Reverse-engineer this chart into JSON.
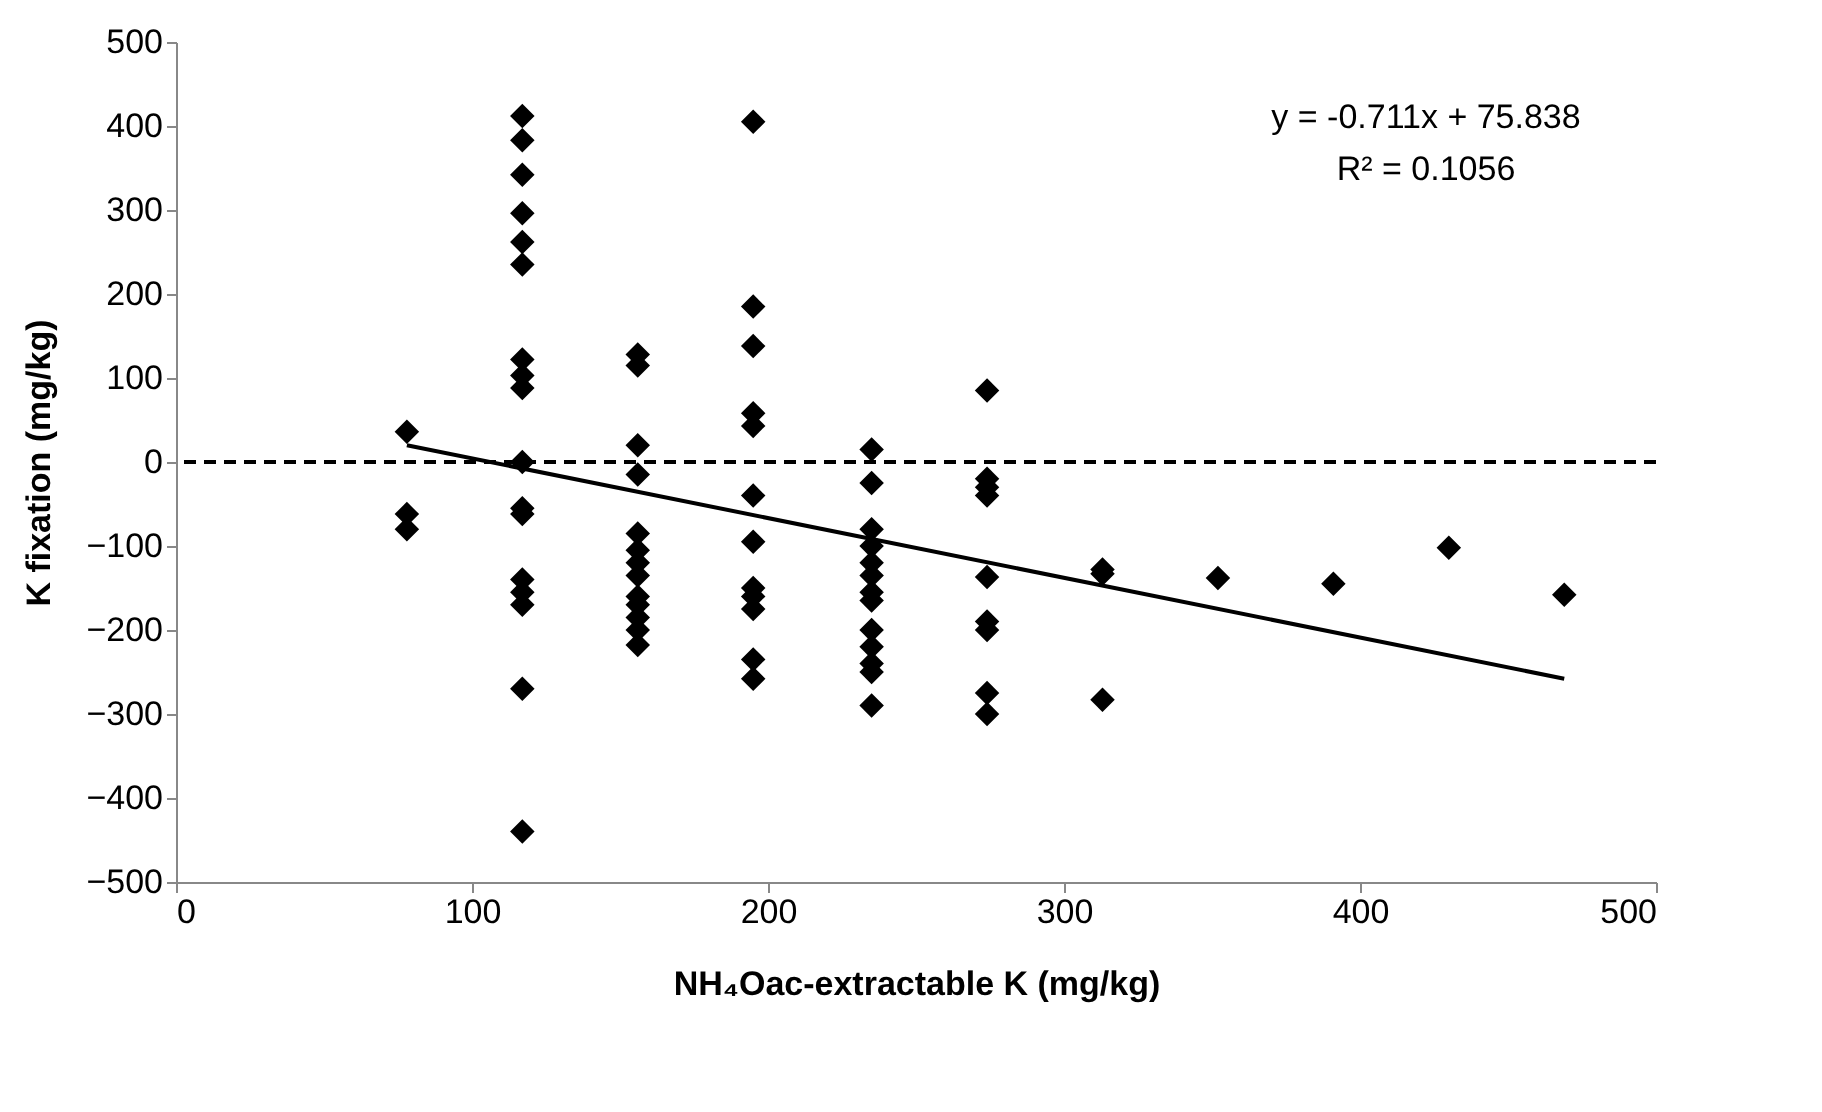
{
  "chart_data": {
    "type": "scatter",
    "xlabel": "NH₄Oac-extractable K (mg/kg)",
    "ylabel": "K fixation (mg/kg)",
    "xlim": [
      0,
      500
    ],
    "xticks": [
      0,
      100,
      200,
      300,
      400,
      500
    ],
    "ylim": [
      -500,
      500
    ],
    "yticks": [
      -500,
      -400,
      -300,
      -200,
      -100,
      0,
      100,
      200,
      300,
      400,
      500
    ],
    "grid": false,
    "series": [
      {
        "color": "#000000",
        "marker": "diamond",
        "x": [
          78,
          78,
          78,
          117,
          117,
          117,
          117,
          117,
          117,
          117,
          117,
          117,
          117,
          117,
          117,
          117,
          117,
          117,
          117,
          117,
          156,
          156,
          156,
          156,
          156,
          156,
          156,
          156,
          156,
          156,
          156,
          156,
          156,
          195,
          195,
          195,
          195,
          195,
          195,
          195,
          195,
          195,
          195,
          195,
          195,
          235,
          235,
          235,
          235,
          235,
          235,
          235,
          235,
          235,
          235,
          235,
          235,
          235,
          274,
          274,
          274,
          274,
          274,
          274,
          274,
          274,
          274,
          313,
          313,
          313,
          352,
          391,
          430,
          469
        ],
        "values": [
          36,
          -62,
          -80,
          412,
          383,
          342,
          296,
          262,
          235,
          122,
          103,
          88,
          0,
          -55,
          -62,
          -140,
          -155,
          -170,
          -270,
          -440,
          128,
          115,
          20,
          -15,
          -85,
          -105,
          -120,
          -135,
          -160,
          -170,
          -185,
          -200,
          -218,
          405,
          185,
          138,
          58,
          43,
          -40,
          -95,
          -150,
          -160,
          -175,
          -235,
          -258,
          15,
          -25,
          -80,
          -100,
          -120,
          -135,
          -155,
          -165,
          -200,
          -220,
          -240,
          -250,
          -290,
          85,
          -20,
          -30,
          -40,
          -137,
          -190,
          -200,
          -275,
          -300,
          -128,
          -133,
          -283,
          -138,
          -145,
          -102,
          -158
        ]
      },
      {
        "type": "line",
        "color": "#000000",
        "marker": "none",
        "line_style": "solid",
        "x": [
          78,
          469
        ],
        "values": [
          20,
          -258
        ]
      }
    ],
    "ref_lines": [
      {
        "axis": "y",
        "value": 0,
        "color": "#000000",
        "line_style": "dashed"
      }
    ],
    "annotations": [
      "y = -0.711x + 75.838",
      "R² = 0.1056"
    ]
  }
}
